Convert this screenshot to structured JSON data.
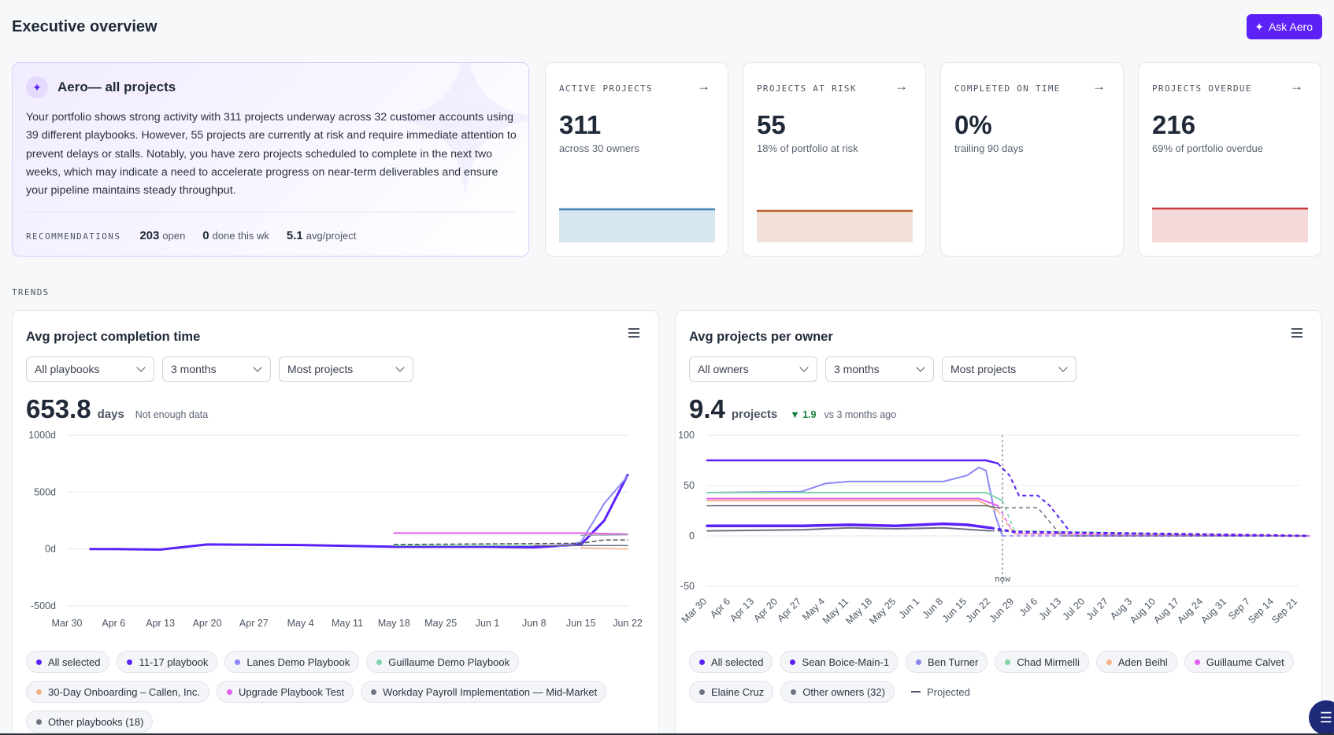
{
  "header": {
    "title": "Executive overview",
    "ask_label": "Ask Aero"
  },
  "aero": {
    "title": "Aero— all projects",
    "body": "Your portfolio shows strong activity with 311 projects underway across 32 customer accounts using 39 different playbooks. However, 55 projects are currently at risk and require immediate attention to prevent delays or stalls. Notably, you have zero projects scheduled to complete in the next two weeks, which may indicate a need to accelerate progress on near-term deliverables and ensure your pipeline maintains steady throughput.",
    "recommendations_label": "RECOMMENDATIONS",
    "open_value": "203",
    "open_label": "open",
    "done_value": "0",
    "done_label": "done this wk",
    "avg_value": "5.1",
    "avg_label": "avg/project"
  },
  "kpis": [
    {
      "label": "ACTIVE PROJECTS",
      "value": "311",
      "sub": "across 30 owners",
      "line_color": "#3b7fb5",
      "fill_color": "#d6e6ef"
    },
    {
      "label": "PROJECTS AT RISK",
      "value": "55",
      "sub": "18% of portfolio at risk",
      "line_color": "#b9602d",
      "fill_color": "#f3e2d7"
    },
    {
      "label": "COMPLETED ON TIME",
      "value": "0%",
      "sub": "trailing 90 days"
    },
    {
      "label": "PROJECTS OVERDUE",
      "value": "216",
      "sub": "69% of portfolio overdue",
      "line_color": "#c8393b",
      "fill_color": "#f5d9da"
    }
  ],
  "trends_label": "TRENDS",
  "left_panel": {
    "title": "Avg project completion time",
    "filters": [
      "All playbooks",
      "3 months",
      "Most projects"
    ],
    "value": "653.8",
    "unit": "days",
    "note": "Not enough data",
    "legend": [
      {
        "label": "All selected",
        "color": "#5b21f6"
      },
      {
        "label": "11-17 playbook",
        "color": "#5b21f6"
      },
      {
        "label": "Lanes Demo Playbook",
        "color": "#8b87f5"
      },
      {
        "label": "Guillaume Demo Playbook",
        "color": "#7fd3a8"
      },
      {
        "label": "30-Day Onboarding – Callen, Inc.",
        "color": "#f7b08a"
      },
      {
        "label": "Upgrade Playbook Test",
        "color": "#e45ef0"
      },
      {
        "label": "Workday Payroll Implementation — Mid-Market",
        "color": "#6b7280"
      },
      {
        "label": "Other playbooks (18)",
        "color": "#6b7280"
      }
    ]
  },
  "right_panel": {
    "title": "Avg projects per owner",
    "filters": [
      "All owners",
      "3 months",
      "Most projects"
    ],
    "value": "9.4",
    "unit": "projects",
    "delta": "▼ 1.9",
    "note": "vs 3 months ago",
    "now_label": "now",
    "legend": [
      {
        "label": "All selected",
        "color": "#5b21f6"
      },
      {
        "label": "Sean Boice-Main-1",
        "color": "#5b21f6"
      },
      {
        "label": "Ben Turner",
        "color": "#8b87f5"
      },
      {
        "label": "Chad Mirmelli",
        "color": "#7fd3a8"
      },
      {
        "label": "Aden Beihl",
        "color": "#f7b08a"
      },
      {
        "label": "Guillaume Calvet",
        "color": "#e45ef0"
      },
      {
        "label": "Elaine Cruz",
        "color": "#6b7280"
      },
      {
        "label": "Other owners (32)",
        "color": "#6b7280"
      }
    ],
    "projected_label": "Projected"
  },
  "chart_data": [
    {
      "type": "line",
      "title": "Avg project completion time",
      "ylabel": "",
      "xlabel": "",
      "y_ticks": [
        "1000d",
        "500d",
        "0d",
        "-500d"
      ],
      "ylim": [
        -500,
        1000
      ],
      "x_ticks": [
        "Mar 30",
        "Apr 6",
        "Apr 13",
        "Apr 20",
        "Apr 27",
        "May 4",
        "May 11",
        "May 18",
        "May 25",
        "Jun 1",
        "Jun 8",
        "Jun 15",
        "Jun 22"
      ],
      "series": [
        {
          "name": "11-17 playbook",
          "color": "#5b21f6",
          "width": 3,
          "points": [
            [
              0.5,
              0
            ],
            [
              1,
              0
            ],
            [
              2,
              -5
            ],
            [
              3,
              40
            ],
            [
              5,
              35
            ],
            [
              7,
              20
            ],
            [
              9,
              20
            ],
            [
              10,
              15
            ],
            [
              11,
              40
            ],
            [
              11.5,
              250
            ],
            [
              12,
              650
            ]
          ]
        },
        {
          "name": "Lanes Demo Playbook",
          "color": "#8b87f5",
          "width": 2,
          "points": [
            [
              10.5,
              20
            ],
            [
              11,
              60
            ],
            [
              11.5,
              400
            ],
            [
              12,
              640
            ]
          ]
        },
        {
          "name": "Guillaume Demo Playbook",
          "color": "#7fd3a8",
          "width": 1.5,
          "points": [
            [
              7,
              30
            ],
            [
              12,
              30
            ]
          ]
        },
        {
          "name": "30-Day Onboarding – Callen, Inc.",
          "color": "#f7b08a",
          "width": 1.5,
          "points": [
            [
              11,
              10
            ],
            [
              12,
              0
            ]
          ]
        },
        {
          "name": "Upgrade Playbook Test",
          "color": "#e45ef0",
          "width": 2,
          "points": [
            [
              7,
              140
            ],
            [
              11,
              140
            ],
            [
              11.5,
              135
            ],
            [
              12,
              130
            ]
          ]
        },
        {
          "name": "Workday Payroll Implementation — Mid-Market",
          "color": "#6b7280",
          "width": 1.5,
          "points": [
            [
              10,
              30
            ],
            [
              12,
              30
            ]
          ]
        },
        {
          "name": "Other playbooks (18)",
          "color": "#9aa3ae",
          "width": 1.5,
          "points": [
            [
              11,
              120
            ],
            [
              12,
              125
            ]
          ]
        },
        {
          "name": "",
          "color": "#4b5563",
          "width": 1.5,
          "dash": true,
          "points": [
            [
              7,
              40
            ],
            [
              11,
              50
            ],
            [
              11.5,
              80
            ],
            [
              12,
              80
            ]
          ]
        }
      ]
    },
    {
      "type": "line",
      "title": "Avg projects per owner",
      "ylabel": "",
      "xlabel": "",
      "y_ticks": [
        "100",
        "50",
        "0",
        "-50"
      ],
      "ylim": [
        -50,
        100
      ],
      "x_ticks": [
        "Mar 30",
        "Apr 6",
        "Apr 13",
        "Apr 20",
        "Apr 27",
        "May 4",
        "May 11",
        "May 18",
        "May 25",
        "Jun 1",
        "Jun 8",
        "Jun 15",
        "Jun 22",
        "Jun 29",
        "Jul 6",
        "Jul 13",
        "Jul 20",
        "Jul 27",
        "Aug 3",
        "Aug 10",
        "Aug 17",
        "Aug 24",
        "Aug 31",
        "Sep 7",
        "Sep 14",
        "Sep 21"
      ],
      "now_index": 12.5,
      "series": [
        {
          "name": "Sean Boice-Main-1",
          "color": "#5b21f6",
          "width": 2.5,
          "points": [
            [
              0,
              75
            ],
            [
              11.8,
              75
            ],
            [
              12.3,
              72
            ]
          ],
          "projected": [
            [
              12.3,
              72
            ],
            [
              12.8,
              60
            ],
            [
              13.2,
              40
            ],
            [
              14,
              40
            ],
            [
              14.5,
              30
            ],
            [
              15.5,
              0
            ],
            [
              25.5,
              0
            ]
          ]
        },
        {
          "name": "Ben Turner",
          "color": "#8b87f5",
          "width": 2,
          "points": [
            [
              0,
              43
            ],
            [
              4,
              44
            ],
            [
              5,
              52
            ],
            [
              6,
              54
            ],
            [
              10,
              54
            ],
            [
              11,
              60
            ],
            [
              11.5,
              68
            ],
            [
              11.8,
              65
            ],
            [
              12.2,
              20
            ],
            [
              12.5,
              0
            ]
          ],
          "projected": [
            [
              12.5,
              0
            ],
            [
              25.5,
              0
            ]
          ]
        },
        {
          "name": "Chad Mirmelli",
          "color": "#7fd3a8",
          "width": 2,
          "points": [
            [
              0,
              43
            ],
            [
              11.8,
              43
            ],
            [
              12.5,
              35
            ]
          ],
          "projected": [
            [
              12.5,
              35
            ],
            [
              13,
              5
            ],
            [
              25.5,
              0
            ]
          ]
        },
        {
          "name": "Aden Beihl",
          "color": "#f7b08a",
          "width": 2,
          "points": [
            [
              0,
              35
            ],
            [
              11.5,
              35
            ],
            [
              12.3,
              25
            ]
          ],
          "projected": [
            [
              12.3,
              25
            ],
            [
              13,
              2
            ],
            [
              25.5,
              0
            ]
          ]
        },
        {
          "name": "Guillaume Calvet",
          "color": "#e45ef0",
          "width": 2,
          "points": [
            [
              0,
              37
            ],
            [
              11.5,
              37
            ],
            [
              12.3,
              30
            ]
          ],
          "projected": [
            [
              12.3,
              30
            ],
            [
              13,
              2
            ],
            [
              25.5,
              0
            ]
          ]
        },
        {
          "name": "Elaine Cruz",
          "color": "#6b7280",
          "width": 2,
          "points": [
            [
              0,
              5
            ],
            [
              4,
              6
            ],
            [
              6,
              8
            ],
            [
              8,
              7
            ],
            [
              10,
              8
            ],
            [
              12,
              5
            ]
          ],
          "projected": [
            [
              12,
              5
            ],
            [
              25.5,
              0
            ]
          ]
        },
        {
          "name": "Other owners (32)",
          "color": "#6b7280",
          "width": 1.5,
          "points": [
            [
              0,
              30
            ],
            [
              11.8,
              30
            ],
            [
              12.3,
              28
            ]
          ],
          "projected": [
            [
              12.3,
              28
            ],
            [
              13.2,
              28
            ],
            [
              14,
              28
            ],
            [
              15,
              0
            ],
            [
              25.5,
              0
            ]
          ]
        },
        {
          "name": "All selected",
          "color": "#5b21f6",
          "width": 3.5,
          "points": [
            [
              0,
              10
            ],
            [
              4,
              10
            ],
            [
              6,
              11
            ],
            [
              8,
              10
            ],
            [
              10,
              12
            ],
            [
              11,
              11
            ],
            [
              12,
              8
            ]
          ],
          "projected": [
            [
              12,
              8
            ],
            [
              13,
              4
            ],
            [
              25.5,
              0
            ]
          ]
        }
      ]
    }
  ]
}
